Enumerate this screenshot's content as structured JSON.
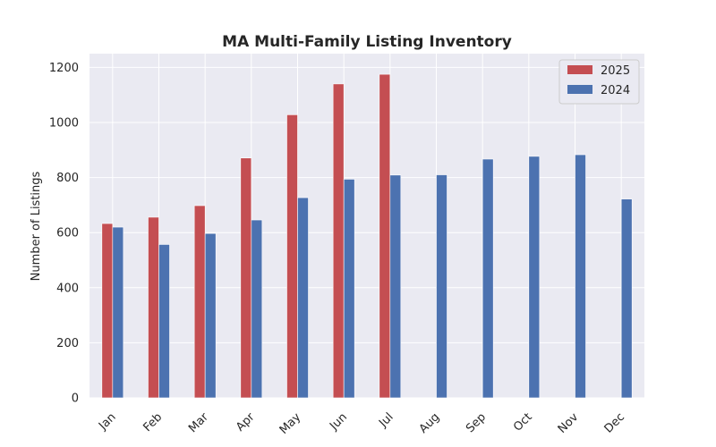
{
  "chart_data": {
    "type": "bar",
    "title": "MA Multi-Family Listing Inventory",
    "xlabel": "",
    "ylabel": "Number of Listings",
    "categories": [
      "Jan",
      "Feb",
      "Mar",
      "Apr",
      "May",
      "Jun",
      "Jul",
      "Aug",
      "Sep",
      "Oct",
      "Nov",
      "Dec"
    ],
    "series": [
      {
        "name": "2025",
        "color": "#c44e52",
        "values": [
          633,
          656,
          698,
          871,
          1028,
          1140,
          1175,
          null,
          null,
          null,
          null,
          null
        ]
      },
      {
        "name": "2024",
        "color": "#4c72b0",
        "values": [
          620,
          557,
          597,
          646,
          727,
          794,
          809,
          810,
          867,
          877,
          883,
          722
        ]
      }
    ],
    "ylim": [
      0,
      1250
    ],
    "yticks": [
      0,
      200,
      400,
      600,
      800,
      1000,
      1200
    ],
    "grid": true,
    "legend_position": "top-right",
    "background": "#eaeaf2"
  }
}
